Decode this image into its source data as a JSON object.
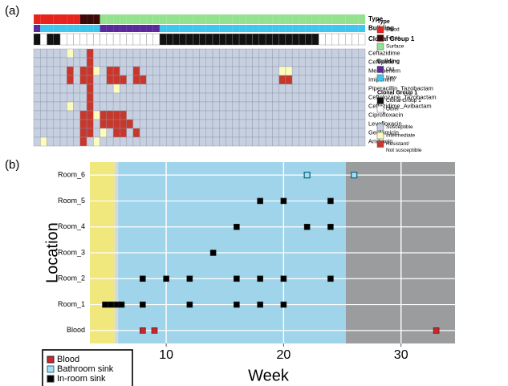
{
  "chart_data": [
    {
      "type": "heatmap",
      "panel_label": "(a)",
      "annotation_rows": [
        {
          "name": "Type",
          "values": [
            0,
            0,
            0,
            0,
            0,
            0,
            0,
            1,
            1,
            1,
            2,
            2,
            2,
            2,
            2,
            2,
            2,
            2,
            2,
            2,
            2,
            2,
            2,
            2,
            2,
            2,
            2,
            2,
            2,
            2,
            2,
            2,
            2,
            2,
            2,
            2,
            2,
            2,
            2,
            2,
            2,
            2,
            2,
            2,
            2,
            2,
            2,
            2,
            2,
            2
          ]
        },
        {
          "name": "Building",
          "values": [
            0,
            1,
            1,
            1,
            1,
            1,
            1,
            1,
            1,
            1,
            0,
            0,
            0,
            0,
            0,
            0,
            0,
            0,
            0,
            1,
            1,
            1,
            1,
            1,
            1,
            1,
            1,
            1,
            1,
            1,
            1,
            1,
            1,
            1,
            1,
            1,
            1,
            1,
            1,
            1,
            1,
            1,
            1,
            1,
            1,
            1,
            1,
            1,
            1,
            1
          ]
        },
        {
          "name": "Clonal Group 1",
          "values": [
            0,
            1,
            0,
            0,
            1,
            1,
            1,
            1,
            1,
            1,
            1,
            1,
            1,
            1,
            1,
            1,
            1,
            1,
            1,
            0,
            0,
            0,
            0,
            0,
            0,
            0,
            0,
            0,
            0,
            0,
            0,
            0,
            0,
            0,
            0,
            0,
            0,
            0,
            0,
            0,
            0,
            0,
            0,
            1,
            1,
            1,
            1,
            1,
            1,
            1
          ]
        }
      ],
      "rows": [
        {
          "name": "Ceftazidime",
          "values": [
            0,
            0,
            0,
            0,
            0,
            1,
            0,
            0,
            2,
            0,
            0,
            0,
            0,
            0,
            0,
            0,
            0,
            0,
            0,
            0,
            0,
            0,
            0,
            0,
            0,
            0,
            0,
            0,
            0,
            0,
            0,
            0,
            0,
            0,
            0,
            0,
            0,
            0,
            0,
            0,
            0,
            0,
            0,
            0,
            0,
            0,
            0,
            0,
            0,
            0
          ]
        },
        {
          "name": "Cefepime",
          "values": [
            0,
            0,
            0,
            0,
            0,
            0,
            0,
            0,
            2,
            0,
            0,
            0,
            0,
            0,
            0,
            0,
            0,
            0,
            0,
            0,
            0,
            0,
            0,
            0,
            0,
            0,
            0,
            0,
            0,
            0,
            0,
            0,
            0,
            0,
            0,
            0,
            0,
            0,
            0,
            0,
            0,
            0,
            0,
            0,
            0,
            0,
            0,
            0,
            0,
            0
          ]
        },
        {
          "name": "Meropenem",
          "values": [
            0,
            0,
            0,
            0,
            0,
            2,
            0,
            2,
            2,
            1,
            0,
            2,
            2,
            0,
            0,
            2,
            0,
            0,
            0,
            0,
            0,
            0,
            0,
            0,
            0,
            0,
            0,
            0,
            0,
            0,
            0,
            0,
            0,
            0,
            0,
            0,
            0,
            1,
            1,
            0,
            0,
            0,
            0,
            0,
            0,
            0,
            0,
            0,
            0,
            0
          ]
        },
        {
          "name": "Imipenem",
          "values": [
            0,
            0,
            0,
            0,
            0,
            2,
            0,
            2,
            2,
            0,
            0,
            2,
            2,
            2,
            0,
            2,
            2,
            0,
            0,
            0,
            0,
            0,
            0,
            0,
            0,
            0,
            0,
            0,
            0,
            0,
            0,
            0,
            0,
            0,
            0,
            0,
            0,
            2,
            2,
            0,
            0,
            0,
            0,
            0,
            0,
            0,
            0,
            0,
            0,
            0
          ]
        },
        {
          "name": "Piperacillin_Tazobactam",
          "values": [
            0,
            0,
            0,
            0,
            0,
            0,
            0,
            0,
            2,
            0,
            0,
            0,
            1,
            0,
            0,
            0,
            0,
            0,
            0,
            0,
            0,
            0,
            0,
            0,
            0,
            0,
            0,
            0,
            0,
            0,
            0,
            0,
            0,
            0,
            0,
            0,
            0,
            0,
            0,
            0,
            0,
            0,
            0,
            0,
            0,
            0,
            0,
            0,
            0,
            0
          ]
        },
        {
          "name": "Ceftolozane_Tazobactam",
          "values": [
            0,
            0,
            0,
            0,
            0,
            0,
            0,
            0,
            2,
            0,
            0,
            0,
            0,
            0,
            0,
            0,
            0,
            0,
            0,
            0,
            0,
            0,
            0,
            0,
            0,
            0,
            0,
            0,
            0,
            0,
            0,
            0,
            0,
            0,
            0,
            0,
            0,
            0,
            0,
            0,
            0,
            0,
            0,
            0,
            0,
            0,
            0,
            0,
            0,
            0
          ]
        },
        {
          "name": "Ceftazidime_Avibactam",
          "values": [
            0,
            0,
            0,
            0,
            0,
            1,
            0,
            0,
            2,
            0,
            0,
            0,
            0,
            0,
            0,
            0,
            0,
            0,
            0,
            0,
            0,
            0,
            0,
            0,
            0,
            0,
            0,
            0,
            0,
            0,
            0,
            0,
            0,
            0,
            0,
            0,
            0,
            0,
            0,
            0,
            0,
            0,
            0,
            0,
            0,
            0,
            0,
            0,
            0,
            0
          ]
        },
        {
          "name": "Ciprofloxacin",
          "values": [
            0,
            0,
            0,
            0,
            0,
            0,
            0,
            2,
            2,
            1,
            2,
            2,
            2,
            2,
            0,
            0,
            0,
            0,
            0,
            0,
            0,
            0,
            0,
            0,
            0,
            0,
            0,
            0,
            0,
            0,
            0,
            0,
            0,
            0,
            0,
            0,
            0,
            0,
            0,
            0,
            0,
            0,
            0,
            0,
            0,
            0,
            0,
            0,
            0,
            0
          ]
        },
        {
          "name": "Levofloxacin",
          "values": [
            0,
            0,
            0,
            0,
            0,
            0,
            0,
            2,
            2,
            0,
            2,
            2,
            2,
            2,
            2,
            0,
            0,
            0,
            0,
            0,
            0,
            0,
            0,
            0,
            0,
            0,
            0,
            0,
            0,
            0,
            0,
            0,
            0,
            0,
            0,
            0,
            0,
            0,
            0,
            0,
            0,
            0,
            0,
            0,
            0,
            0,
            0,
            0,
            0,
            0
          ]
        },
        {
          "name": "Gentamicin",
          "values": [
            0,
            0,
            0,
            0,
            0,
            0,
            0,
            2,
            2,
            0,
            1,
            0,
            2,
            2,
            0,
            2,
            0,
            0,
            0,
            0,
            0,
            0,
            0,
            0,
            0,
            0,
            0,
            0,
            0,
            0,
            0,
            0,
            0,
            0,
            0,
            0,
            0,
            0,
            0,
            0,
            0,
            0,
            0,
            0,
            0,
            0,
            0,
            0,
            0,
            0
          ]
        },
        {
          "name": "Amikacin",
          "values": [
            0,
            1,
            0,
            0,
            0,
            0,
            0,
            2,
            0,
            1,
            0,
            0,
            0,
            0,
            0,
            0,
            0,
            0,
            0,
            0,
            0,
            0,
            0,
            0,
            0,
            0,
            0,
            0,
            0,
            0,
            0,
            0,
            0,
            0,
            0,
            0,
            0,
            0,
            0,
            0,
            0,
            0,
            0,
            0,
            0,
            0,
            0,
            0,
            0,
            0
          ]
        }
      ],
      "legend": [
        {
          "title": "Type",
          "items": [
            {
              "label": "Blood",
              "color": "#e8221c"
            },
            {
              "label": "Feces",
              "color": "#3d0a0a"
            },
            {
              "label": "Surface",
              "color": "#93e28f"
            }
          ]
        },
        {
          "title": "Building",
          "items": [
            {
              "label": "Old",
              "color": "#5a2a9c"
            },
            {
              "label": "New",
              "color": "#3ec6ef"
            }
          ]
        },
        {
          "title": "Clonal Group 1",
          "items": [
            {
              "label": "Clonal Group 1",
              "color": "#111111"
            },
            {
              "label": "Other",
              "color": "#ffffff"
            }
          ]
        },
        {
          "items": [
            {
              "label": "Susceptible",
              "color": "#c6d0e0"
            },
            {
              "label": "Intermediate",
              "color": "#fdfcbf"
            },
            {
              "label": [
                "Resistant/",
                "Not susceptible"
              ],
              "color": "#c8372c"
            }
          ]
        }
      ]
    },
    {
      "type": "scatter",
      "panel_label": "(b)",
      "x_label": "Week",
      "y_label": "Location",
      "categories": [
        "Blood",
        "Room_1",
        "Room_2",
        "Room_3",
        "Room_4",
        "Room_5",
        "Room_6"
      ],
      "xlim": [
        3.5,
        34.6
      ],
      "xticks": [
        10,
        20,
        30
      ],
      "grid": true,
      "bands": [
        {
          "start": 3.5,
          "end": 5.6,
          "color": "#f0e87c"
        },
        {
          "start": 5.6,
          "end": 5.9,
          "color": "#d8d8d8"
        },
        {
          "start": 5.9,
          "end": 25.3,
          "color": "#9fd4ea"
        },
        {
          "start": 25.3,
          "end": 34.6,
          "color": "#9a9c9e"
        }
      ],
      "series": [
        {
          "name": "Blood",
          "color": "#c8272c",
          "x": [
            8,
            9,
            33
          ],
          "y": [
            "Blood",
            "Blood",
            "Blood"
          ]
        },
        {
          "name": "Bathroom sink",
          "color": "#a9def2",
          "x": [
            22,
            26
          ],
          "y": [
            "Room_6",
            "Room_6"
          ]
        },
        {
          "name": "In-room sink",
          "color": "#000000",
          "x": [
            4.8,
            5.3,
            5.8,
            6.2,
            8,
            12,
            16,
            18,
            20,
            8,
            10,
            12,
            16,
            18,
            20,
            24,
            14,
            16,
            22,
            24,
            18,
            20,
            24
          ],
          "y": [
            "Room_1",
            "Room_1",
            "Room_1",
            "Room_1",
            "Room_1",
            "Room_1",
            "Room_1",
            "Room_1",
            "Room_1",
            "Room_2",
            "Room_2",
            "Room_2",
            "Room_2",
            "Room_2",
            "Room_2",
            "Room_2",
            "Room_3",
            "Room_4",
            "Room_4",
            "Room_4",
            "Room_5",
            "Room_5",
            "Room_5"
          ]
        }
      ]
    }
  ]
}
